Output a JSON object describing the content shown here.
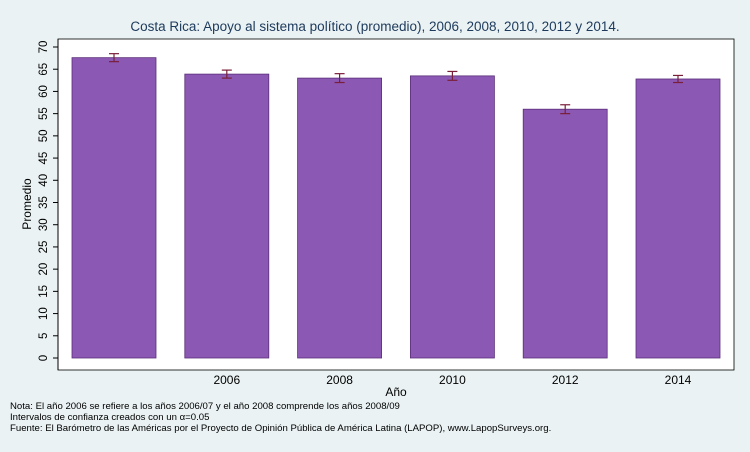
{
  "chart_data": {
    "type": "bar",
    "title": "Costa Rica: Apoyo al sistema político (promedio), 2006, 2008, 2010, 2012 y 2014.",
    "xlabel": "Año",
    "ylabel": "Promedio",
    "ylim": [
      0,
      70
    ],
    "yticks": [
      0,
      5,
      10,
      15,
      20,
      25,
      30,
      35,
      40,
      45,
      50,
      55,
      60,
      65,
      70
    ],
    "grid": false,
    "legend": "none",
    "categories": [
      "",
      "2006",
      "2008",
      "2010",
      "2012",
      "2014"
    ],
    "values": [
      67.6,
      63.9,
      63.0,
      63.5,
      56.0,
      62.8
    ],
    "error_low": [
      66.7,
      63.0,
      62.0,
      62.5,
      55.0,
      62.0
    ],
    "error_high": [
      68.5,
      64.8,
      64.0,
      64.5,
      57.0,
      63.6
    ],
    "colors": {
      "bar_fill": "#8b58b3",
      "bar_stroke": "#5a2e7a",
      "error_bar": "#7a1f3a",
      "title": "#1d3a5c",
      "plot_bg": "#ffffff",
      "page_bg": "#eaf2f3"
    }
  },
  "notes": {
    "line1": "Nota: El año 2006 se refiere a los años 2006/07 y el año 2008 comprende los años 2008/09",
    "line2": "Intervalos de confianza creados con un α=0.05",
    "line3": "Fuente: El Barómetro de las Américas por el Proyecto de Opinión Pública de América Latina (LAPOP), www.LapopSurveys.org."
  }
}
